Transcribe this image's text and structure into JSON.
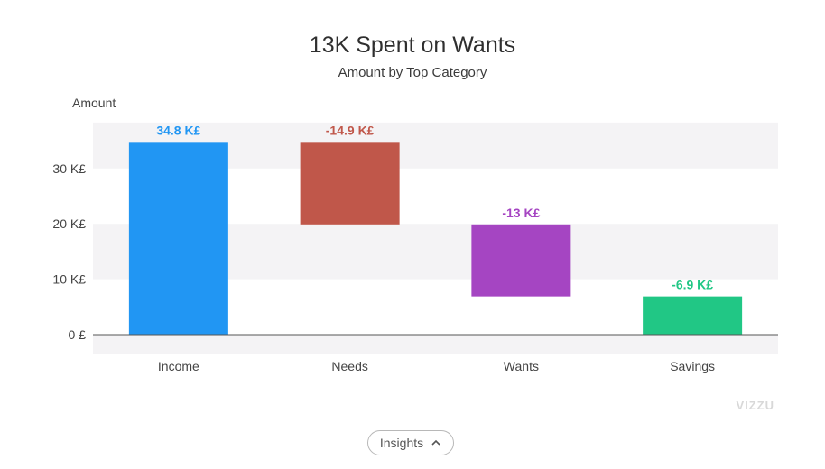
{
  "title": "13K Spent on Wants",
  "subtitle": "Amount by Top Category",
  "watermark": "VIZZU",
  "insights_button": {
    "label": "Insights",
    "icon": "chevron-up-icon"
  },
  "colors": {
    "Income": "#2196f3",
    "Needs": "#c0574a",
    "Wants": "#a545c2",
    "Savings": "#21c785",
    "band": "#f4f3f5",
    "axis": "#555555"
  },
  "chart_data": {
    "type": "bar",
    "subtype": "waterfall",
    "ylabel": "Amount",
    "categories": [
      "Income",
      "Needs",
      "Wants",
      "Savings"
    ],
    "values": [
      34.8,
      -14.9,
      -13,
      -6.9
    ],
    "bar_ranges": [
      [
        0,
        34.8
      ],
      [
        19.9,
        34.8
      ],
      [
        6.9,
        19.9
      ],
      [
        0,
        6.9
      ]
    ],
    "data_labels": [
      "34.8 K£",
      "-14.9 K£",
      "-13 K£",
      "-6.9 K£"
    ],
    "yticks": [
      {
        "value": 0,
        "label": "0 £"
      },
      {
        "value": 10,
        "label": "10 K£"
      },
      {
        "value": 20,
        "label": "20 K£"
      },
      {
        "value": 30,
        "label": "30 K£"
      }
    ],
    "ylim": [
      -3.5,
      38.3
    ],
    "grid": "alternating bands",
    "legend": "none"
  }
}
